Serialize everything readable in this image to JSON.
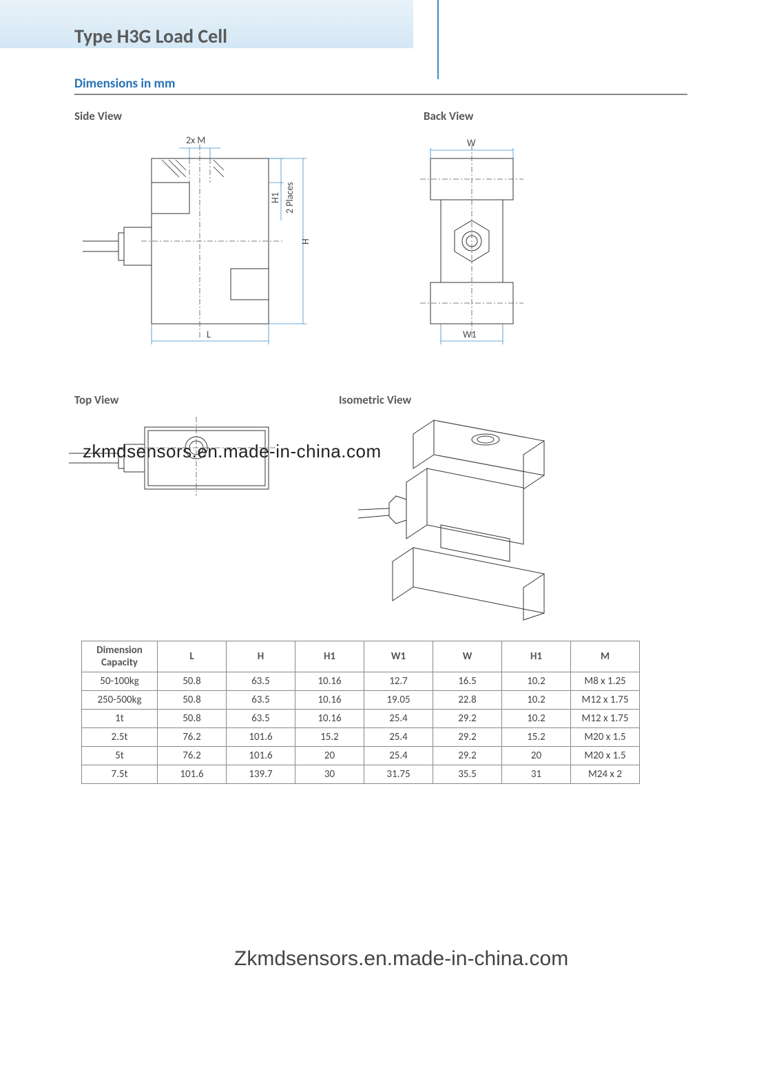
{
  "page": {
    "title": "Type H3G Load Cell",
    "section_title": "Dimensions in mm",
    "colors": {
      "title_color": "#5a5a5a",
      "accent_blue": "#2873b5",
      "dimline_blue": "#3a8cc8",
      "line_dark": "#333333",
      "header_grad_top": "#e8f2f9",
      "header_grad_bot": "#d4e7f5"
    }
  },
  "views": {
    "side": {
      "label": "Side View",
      "dim_2xM": "2x M",
      "dim_H": "H",
      "dim_H1": "H1",
      "dim_2places": "2 Places",
      "dim_L": "L"
    },
    "back": {
      "label": "Back View",
      "dim_W": "W",
      "dim_W1": "W1"
    },
    "top": {
      "label": "Top View"
    },
    "iso": {
      "label": "Isometric View"
    }
  },
  "watermark": {
    "mid": "zkmdsensors.en.made-in-china.com",
    "bottom": "Zkmdsensors.en.made-in-china.com"
  },
  "table": {
    "header_first": "Dimension Capacity",
    "columns": [
      "L",
      "H",
      "H1",
      "W1",
      "W",
      "H1",
      "M"
    ],
    "rows": [
      {
        "capacity": "50-100kg",
        "cells": [
          "50.8",
          "63.5",
          "10.16",
          "12.7",
          "16.5",
          "10.2",
          "M8 x 1.25"
        ]
      },
      {
        "capacity": "250-500kg",
        "cells": [
          "50.8",
          "63.5",
          "10.16",
          "19.05",
          "22.8",
          "10.2",
          "M12 x 1.75"
        ]
      },
      {
        "capacity": "1t",
        "cells": [
          "50.8",
          "63.5",
          "10.16",
          "25.4",
          "29.2",
          "10.2",
          "M12 x 1.75"
        ]
      },
      {
        "capacity": "2.5t",
        "cells": [
          "76.2",
          "101.6",
          "15.2",
          "25.4",
          "29.2",
          "15.2",
          "M20 x 1.5"
        ]
      },
      {
        "capacity": "5t",
        "cells": [
          "76.2",
          "101.6",
          "20",
          "25.4",
          "29.2",
          "20",
          "M20 x 1.5"
        ]
      },
      {
        "capacity": "7.5t",
        "cells": [
          "101.6",
          "139.7",
          "30",
          "31.75",
          "35.5",
          "31",
          "M24 x 2"
        ]
      }
    ]
  }
}
